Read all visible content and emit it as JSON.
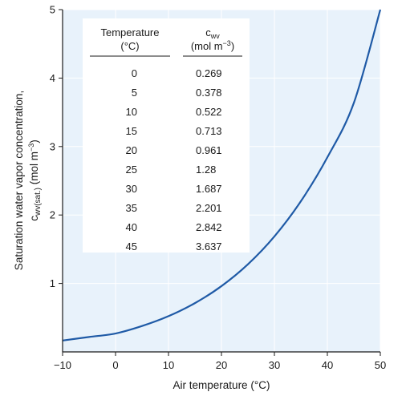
{
  "chart_data": {
    "type": "line",
    "xlabel": "Air temperature (°C)",
    "ylabel_line1": "Saturation water vapor concentration,",
    "ylabel_var": "c",
    "ylabel_sub": "wv(sat.)",
    "ylabel_unit_pre": " (mol m",
    "ylabel_unit_sup": "−3",
    "ylabel_unit_post": ")",
    "xlim": [
      -10,
      50
    ],
    "ylim": [
      0,
      5
    ],
    "xticks": [
      -10,
      0,
      10,
      20,
      30,
      40,
      50
    ],
    "xtick_labels": [
      "−10",
      "0",
      "10",
      "20",
      "30",
      "40",
      "50"
    ],
    "yticks": [
      1,
      2,
      3,
      4,
      5
    ],
    "ytick_labels": [
      "1",
      "2",
      "3",
      "4",
      "5"
    ],
    "plot_background": "#e8f2fb",
    "grid_color": "#ffffff",
    "line_color": "#1f5aa6",
    "series": [
      {
        "x": [
          -10,
          -5,
          0,
          5,
          10,
          15,
          20,
          25,
          30,
          35,
          40,
          45,
          50
        ],
        "y": [
          0.166,
          0.218,
          0.269,
          0.378,
          0.522,
          0.713,
          0.961,
          1.28,
          1.687,
          2.201,
          2.842,
          3.637,
          5.0
        ]
      }
    ],
    "table": {
      "header_col1_line1": "Temperature",
      "header_col1_line2": "(°C)",
      "header_col2_var": "c",
      "header_col2_sub": "wv",
      "header_col2_unit_pre": "(mol m",
      "header_col2_unit_sup": "−3",
      "header_col2_unit_post": ")",
      "rows": [
        [
          "0",
          "0.269"
        ],
        [
          "5",
          "0.378"
        ],
        [
          "10",
          "0.522"
        ],
        [
          "15",
          "0.713"
        ],
        [
          "20",
          "0.961"
        ],
        [
          "25",
          "1.28"
        ],
        [
          "30",
          "1.687"
        ],
        [
          "35",
          "2.201"
        ],
        [
          "40",
          "2.842"
        ],
        [
          "45",
          "3.637"
        ]
      ]
    }
  }
}
